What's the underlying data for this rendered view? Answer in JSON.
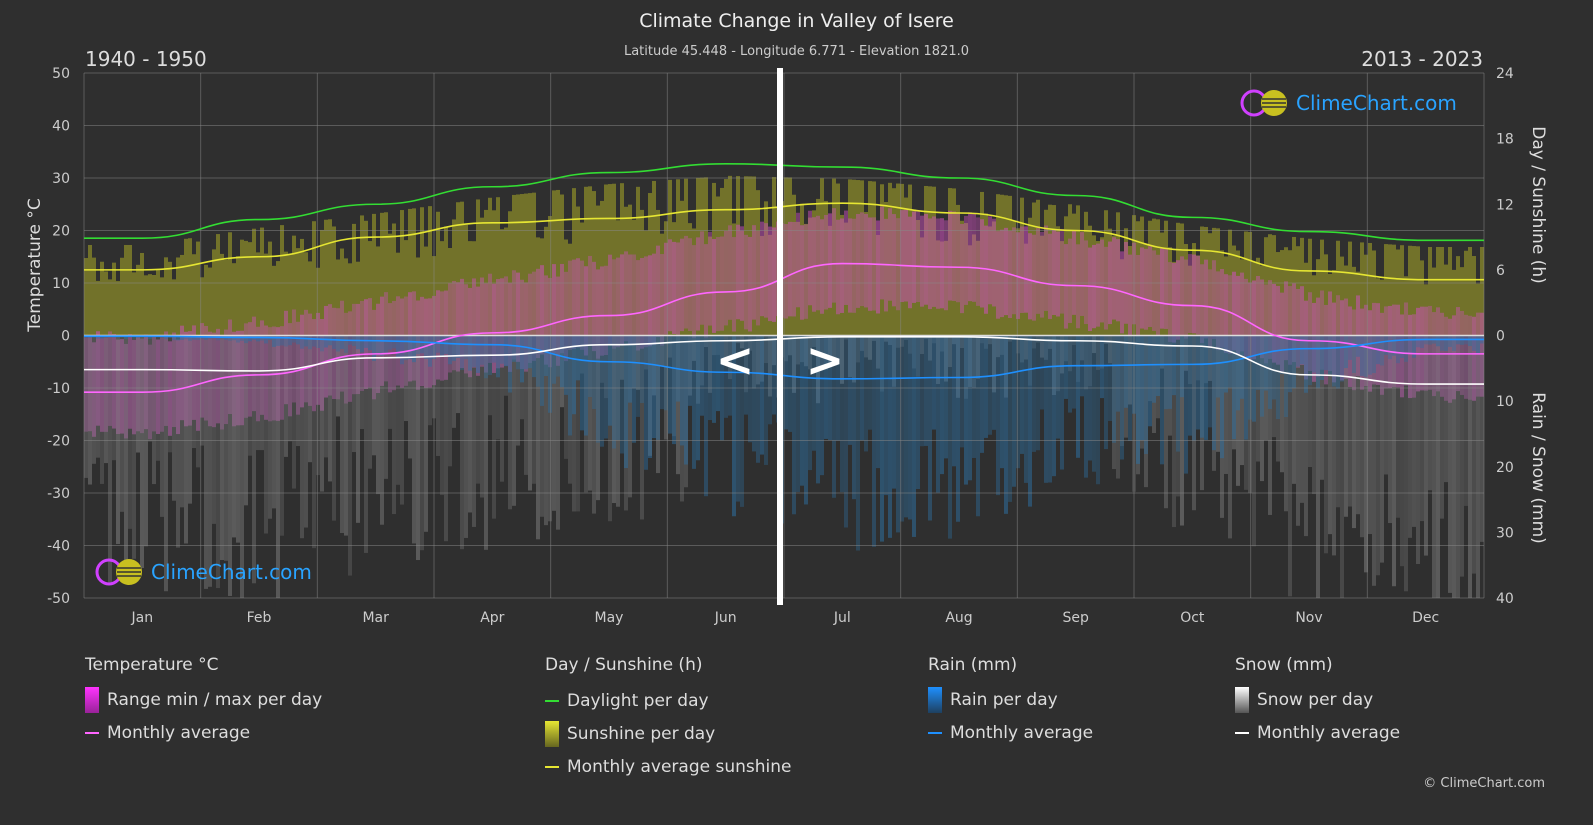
{
  "header": {
    "title": "Climate Change in Valley of Isere",
    "subtitle": "Latitude 45.448 - Longitude 6.771 - Elevation 1821.0",
    "period_left": "1940 - 1950",
    "period_right": "2013 - 2023"
  },
  "nav": {
    "prev": "<",
    "next": ">"
  },
  "logo": {
    "text": "ClimeChart.com"
  },
  "copyright": "© ClimeChart.com",
  "chart_data": {
    "type": "line",
    "categories": [
      "Jan",
      "Feb",
      "Mar",
      "Apr",
      "May",
      "Jun",
      "Jul",
      "Aug",
      "Sep",
      "Oct",
      "Nov",
      "Dec"
    ],
    "ylabel_left": "Temperature °C",
    "ylabel_right_top": "Day / Sunshine (h)",
    "ylabel_right_bottom": "Rain / Snow (mm)",
    "ylim_left": [
      -50,
      50
    ],
    "yticks_left": [
      50,
      40,
      30,
      20,
      10,
      0,
      -10,
      -20,
      -30,
      -40,
      -50
    ],
    "yticks_right_top": [
      24,
      18,
      12,
      6,
      0
    ],
    "yticks_right_bottom": [
      10,
      20,
      30,
      40
    ],
    "grid": true,
    "series": [
      {
        "name": "Monthly average",
        "group": "temperature",
        "color": "#ff66ff",
        "values": [
          -10.8,
          -7.5,
          -3.5,
          0.5,
          3.8,
          8.3,
          13.7,
          13.0,
          9.5,
          5.7,
          -1.0,
          -3.5
        ]
      },
      {
        "name": "Range min / max per day",
        "group": "temperature",
        "color": "#cc33cc",
        "max": [
          -2,
          1,
          5,
          9,
          13,
          18,
          22,
          21,
          17,
          13,
          6,
          3
        ],
        "min": [
          -20,
          -17,
          -12,
          -8,
          -4,
          0,
          4,
          4,
          1,
          -2,
          -9,
          -13
        ]
      },
      {
        "name": "Daylight per day",
        "group": "sun",
        "unit": "h",
        "color": "#33dd33",
        "values": [
          8.9,
          10.6,
          12.0,
          13.6,
          14.9,
          15.7,
          15.4,
          14.4,
          12.8,
          10.8,
          9.5,
          8.7
        ]
      },
      {
        "name": "Sunshine per day",
        "group": "sun",
        "unit": "h",
        "color": "#9a9a30",
        "values": [
          7.2,
          8.6,
          10.2,
          11.8,
          12.8,
          13.5,
          13.6,
          12.6,
          11.2,
          9.5,
          7.8,
          7.0
        ]
      },
      {
        "name": "Monthly average sunshine",
        "group": "sun",
        "unit": "h",
        "color": "#e6e633",
        "values": [
          6.0,
          7.2,
          9.0,
          10.3,
          10.7,
          11.5,
          12.1,
          11.2,
          9.6,
          7.8,
          5.9,
          5.1
        ]
      },
      {
        "name": "Rain per day",
        "group": "rain",
        "unit": "mm",
        "color": "#2e7fbf"
      },
      {
        "name": "Monthly average",
        "group": "rain",
        "unit": "mm",
        "color": "#1e90ff",
        "values": [
          0.1,
          0.3,
          0.8,
          1.4,
          4.0,
          5.6,
          6.6,
          6.4,
          4.6,
          4.4,
          2.0,
          0.6
        ]
      },
      {
        "name": "Snow per day",
        "group": "snow",
        "unit": "mm",
        "color": "#bbbbbb"
      },
      {
        "name": "Monthly average",
        "group": "snow",
        "unit": "mm",
        "color": "#ffffff",
        "values": [
          5.2,
          5.4,
          3.4,
          3.0,
          1.4,
          0.8,
          0.2,
          0.2,
          0.8,
          1.6,
          6.0,
          7.4
        ]
      }
    ]
  },
  "legend": {
    "temperature": {
      "title": "Temperature °C",
      "items": [
        "Range min / max per day",
        "Monthly average"
      ]
    },
    "sun": {
      "title": "Day / Sunshine (h)",
      "items": [
        "Daylight per day",
        "Sunshine per day",
        "Monthly average sunshine"
      ]
    },
    "rain": {
      "title": "Rain (mm)",
      "items": [
        "Rain per day",
        "Monthly average"
      ]
    },
    "snow": {
      "title": "Snow (mm)",
      "items": [
        "Snow per day",
        "Monthly average"
      ]
    }
  }
}
